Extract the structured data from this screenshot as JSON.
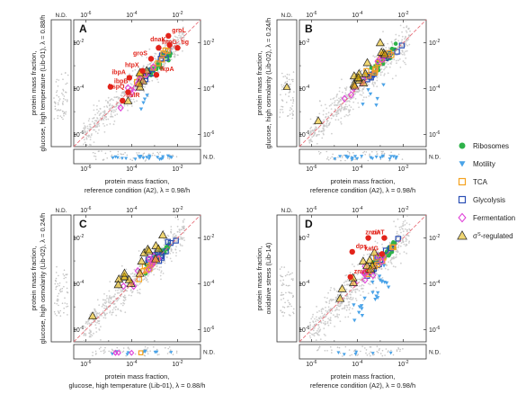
{
  "figure": {
    "nd_label": "N.D.",
    "colors": {
      "scatter_background": "#c4c4c4",
      "diagonal": "#e8707a",
      "highlight_red": "#e2231a",
      "ribosomes": "#2fb24a",
      "motility": "#4aa3e8",
      "tca": "#f4a21f",
      "glycolysis": "#2b4fb5",
      "fermentation": "#e040d8",
      "sigma_s": "#e3b400"
    },
    "legend": [
      {
        "key": "ribosomes",
        "label": "Ribosomes",
        "marker": "circle",
        "color": "#2fb24a"
      },
      {
        "key": "motility",
        "label": "Motility",
        "marker": "triangle-down",
        "color": "#4aa3e8"
      },
      {
        "key": "tca",
        "label": "TCA",
        "marker": "square",
        "color": "#f4a21f"
      },
      {
        "key": "glycolysis",
        "label": "Glycolysis",
        "marker": "square",
        "color": "#2b4fb5"
      },
      {
        "key": "fermentation",
        "label": "Fermentation",
        "marker": "diamond",
        "color": "#e040d8"
      },
      {
        "key": "sigma_s",
        "label": "σS-regulated",
        "label_main": "σ",
        "label_sup": "S",
        "label_rest": "-regulated",
        "marker": "triangle-up",
        "color": "#e3b400"
      }
    ]
  },
  "chart_data": [
    {
      "id": "A",
      "panel_letter": "A",
      "type": "scatter",
      "scale": "log",
      "xlim": [
        3e-07,
        0.1
      ],
      "ylim": [
        3e-07,
        0.1
      ],
      "tick_labels": {
        "major": [
          "10^-6",
          "10^-4",
          "10^-2"
        ]
      },
      "xlabel_lines": [
        "protein mass fraction,",
        "reference condition (A2), λ = 0.98/h"
      ],
      "ylabel_lines": [
        "protein mass fraction,",
        "glucose, high temperature (Lib-01), λ = 0.88/h"
      ],
      "diagonal": "y = x",
      "labeled_points": [
        {
          "label": "groL",
          "x": 0.004,
          "y": 0.02
        },
        {
          "label": "dnaK",
          "x": 0.0045,
          "y": 0.008
        },
        {
          "label": "htpG",
          "x": 0.0015,
          "y": 0.006
        },
        {
          "label": "groS",
          "x": 0.0007,
          "y": 0.002
        },
        {
          "label": "tig",
          "x": 0.01,
          "y": 0.006
        },
        {
          "label": "htpX",
          "x": 0.0003,
          "y": 0.0006
        },
        {
          "label": "fkpA",
          "x": 0.0012,
          "y": 0.0004
        },
        {
          "label": "ibpA",
          "x": 8e-05,
          "y": 0.0003
        },
        {
          "label": "ibpB",
          "x": 1.2e-05,
          "y": 0.00012
        },
        {
          "label": "hspQ",
          "x": 7e-05,
          "y": 7e-05
        },
        {
          "label": "hslR",
          "x": 4e-05,
          "y": 3e-05
        }
      ]
    },
    {
      "id": "B",
      "panel_letter": "B",
      "type": "scatter",
      "scale": "log",
      "xlim": [
        3e-07,
        0.1
      ],
      "ylim": [
        3e-07,
        0.1
      ],
      "tick_labels": {
        "major": [
          "10^-6",
          "10^-4",
          "10^-2"
        ]
      },
      "xlabel_lines": [
        "protein mass fraction,",
        "reference condition (A2), λ = 0.98/h"
      ],
      "ylabel_lines": [
        "protein mass fraction,",
        "glucose, high osmolarity (Lib-02), λ = 0.24/h"
      ],
      "diagonal": "y = x",
      "labeled_points": []
    },
    {
      "id": "C",
      "panel_letter": "C",
      "type": "scatter",
      "scale": "log",
      "xlim": [
        3e-07,
        0.1
      ],
      "ylim": [
        3e-07,
        0.1
      ],
      "tick_labels": {
        "major": [
          "10^-6",
          "10^-4",
          "10^-2"
        ]
      },
      "xlabel_lines": [
        "protein mass fraction,",
        "glucose, high temperature (Lib-01), λ = 0.88/h"
      ],
      "ylabel_lines": [
        "protein mass fraction,",
        "glucose, high osmolarity (Lib-02), λ = 0.24/h"
      ],
      "diagonal": "y = x",
      "labeled_points": []
    },
    {
      "id": "D",
      "panel_letter": "D",
      "type": "scatter",
      "scale": "log",
      "xlim": [
        3e-07,
        0.1
      ],
      "ylim": [
        3e-07,
        0.1
      ],
      "tick_labels": {
        "major": [
          "10^-6",
          "10^-4",
          "10^-2"
        ]
      },
      "xlabel_lines": [
        "protein mass fraction,",
        "reference condition (A2), λ = 0.98/h"
      ],
      "ylabel_lines": [
        "protein mass fraction,",
        "oxidative stress (Lib-14)"
      ],
      "diagonal": "y = x",
      "labeled_points": [
        {
          "label": "zinT",
          "x": 0.0003,
          "y": 0.01
        },
        {
          "label": "znuA",
          "x": 0.0015,
          "y": 0.01
        },
        {
          "label": "dps",
          "x": 6e-05,
          "y": 0.0025
        },
        {
          "label": "katG",
          "x": 0.0012,
          "y": 0.002
        },
        {
          "label": "znuC",
          "x": 5e-05,
          "y": 0.0002
        }
      ]
    }
  ]
}
